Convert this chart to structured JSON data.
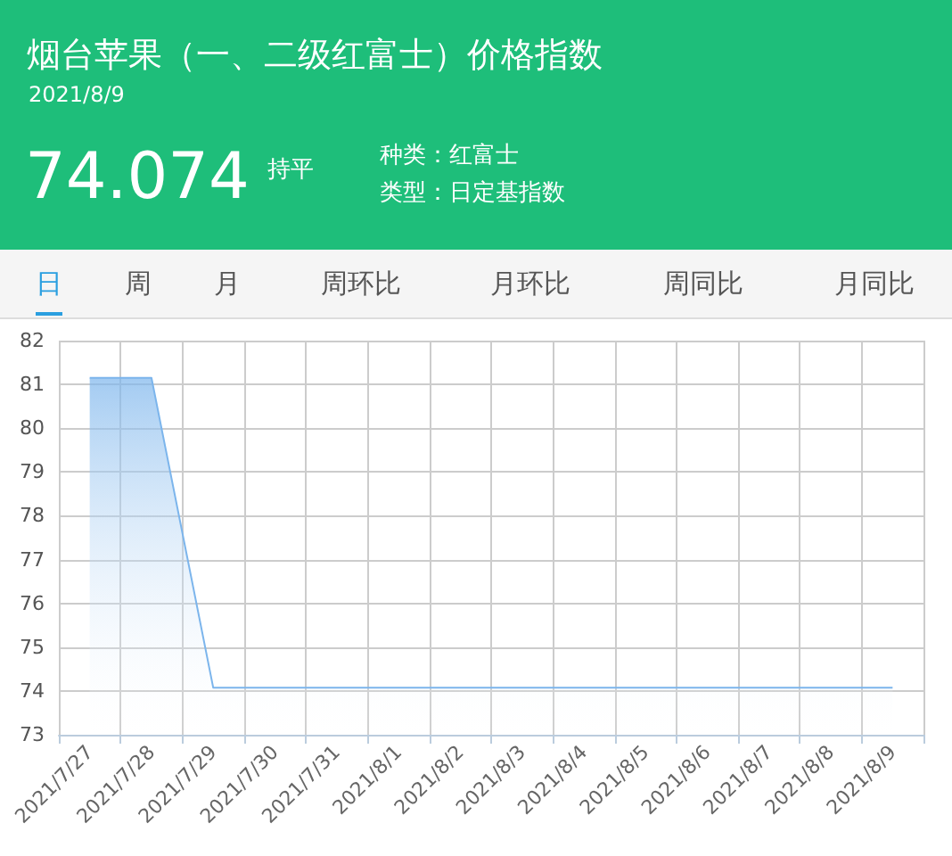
{
  "chart_data": {
    "type": "area",
    "title": "烟台苹果（一、二级红富士）价格指数",
    "subtitle": "2021/8/9",
    "annotations": [
      "74.074",
      "持平",
      "种类：红富士",
      "类型：日定基指数",
      "日",
      "周",
      "月",
      "周环比",
      "月环比",
      "周同比",
      "月同比"
    ],
    "categories": [
      "2021/7/27",
      "2021/7/28",
      "2021/7/29",
      "2021/7/30",
      "2021/7/31",
      "2021/8/1",
      "2021/8/2",
      "2021/8/3",
      "2021/8/4",
      "2021/8/5",
      "2021/8/6",
      "2021/8/7",
      "2021/8/8",
      "2021/8/9"
    ],
    "series": [
      {
        "color": "#7cb5ec",
        "values": [
          81.15,
          81.15,
          74.074,
          74.074,
          74.074,
          74.074,
          74.074,
          74.074,
          74.074,
          74.074,
          74.074,
          74.074,
          74.074,
          74.074
        ]
      }
    ],
    "ylim": [
      73,
      82
    ],
    "yticks": [
      73,
      74,
      75,
      76,
      77,
      78,
      79,
      80,
      81,
      82
    ],
    "grid": true,
    "marker": "none"
  }
}
